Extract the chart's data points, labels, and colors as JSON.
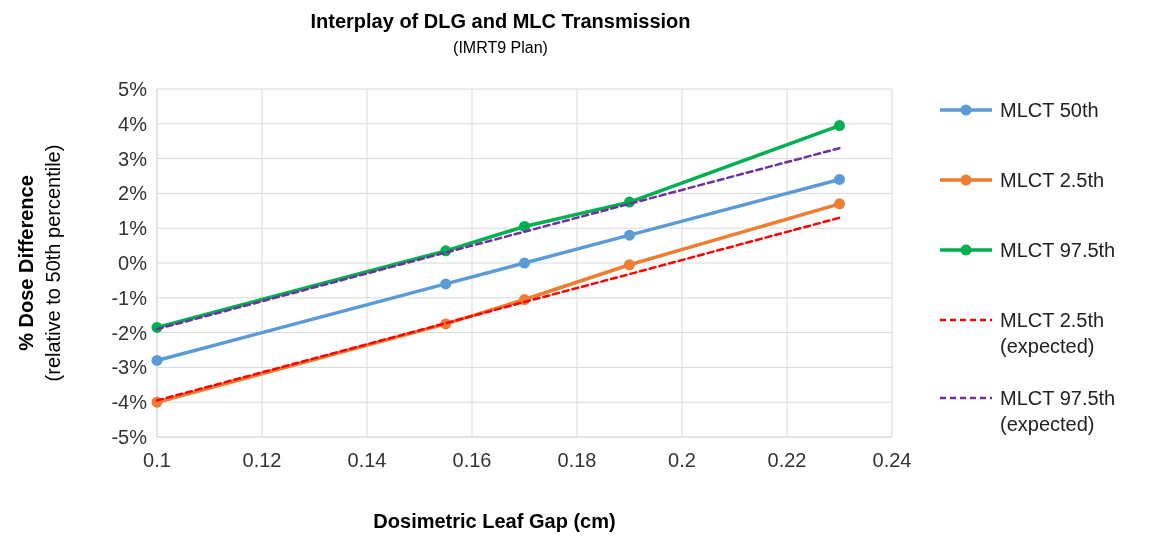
{
  "chart_data": {
    "type": "line",
    "title": "Interplay of DLG and MLC Transmission",
    "subtitle": "(IMRT9 Plan)",
    "xlabel": "Dosimetric Leaf Gap (cm)",
    "ylabel": "% Dose Difference",
    "annotations": [
      "(relative to 50th percentile)"
    ],
    "x": [
      0.1,
      0.155,
      0.17,
      0.19,
      0.23
    ],
    "series": [
      {
        "name": "MLCT 50th",
        "color": "#5b9bd5",
        "values": [
          -2.8,
          -0.6,
          0,
          0.8,
          2.4
        ],
        "marker": "circle",
        "line_style": "solid"
      },
      {
        "name": "MLCT 2.5th",
        "color": "#ed7d31",
        "values": [
          -4,
          -1.75,
          -1.05,
          -0.05,
          1.7
        ],
        "marker": "circle",
        "line_style": "solid"
      },
      {
        "name": "MLCT 97.5th",
        "color": "#00b050",
        "values": [
          -1.85,
          0.35,
          1.05,
          1.75,
          3.95
        ],
        "marker": "circle",
        "line_style": "solid"
      },
      {
        "name": "MLCT 2.5th (expected)",
        "color": "#ff0000",
        "values": [
          -3.95,
          -1.73,
          -1.12,
          -0.32,
          1.3
        ],
        "marker": "none",
        "line_style": "dashed"
      },
      {
        "name": "MLCT 97.5th (expected)",
        "color": "#7030a0",
        "values": [
          -1.9,
          0.3,
          0.9,
          1.7,
          3.3
        ],
        "marker": "none",
        "line_style": "dashed"
      }
    ],
    "xlim": [
      0.1,
      0.24
    ],
    "xticks": [
      0.1,
      0.12,
      0.14,
      0.16,
      0.18,
      0.2,
      0.22,
      0.24
    ],
    "ylim": [
      -5,
      5
    ],
    "yticks": [
      {
        "value": -5,
        "label": "-5%"
      },
      {
        "value": -4,
        "label": "-4%"
      },
      {
        "value": -3,
        "label": "-3%"
      },
      {
        "value": -2,
        "label": "-2%"
      },
      {
        "value": -1,
        "label": "-1%"
      },
      {
        "value": 0,
        "label": "0%"
      },
      {
        "value": 1,
        "label": "1%"
      },
      {
        "value": 2,
        "label": "2%"
      },
      {
        "value": 3,
        "label": "3%"
      },
      {
        "value": 4,
        "label": "4%"
      },
      {
        "value": 5,
        "label": "5%"
      }
    ],
    "grid": true,
    "legend": "right"
  }
}
